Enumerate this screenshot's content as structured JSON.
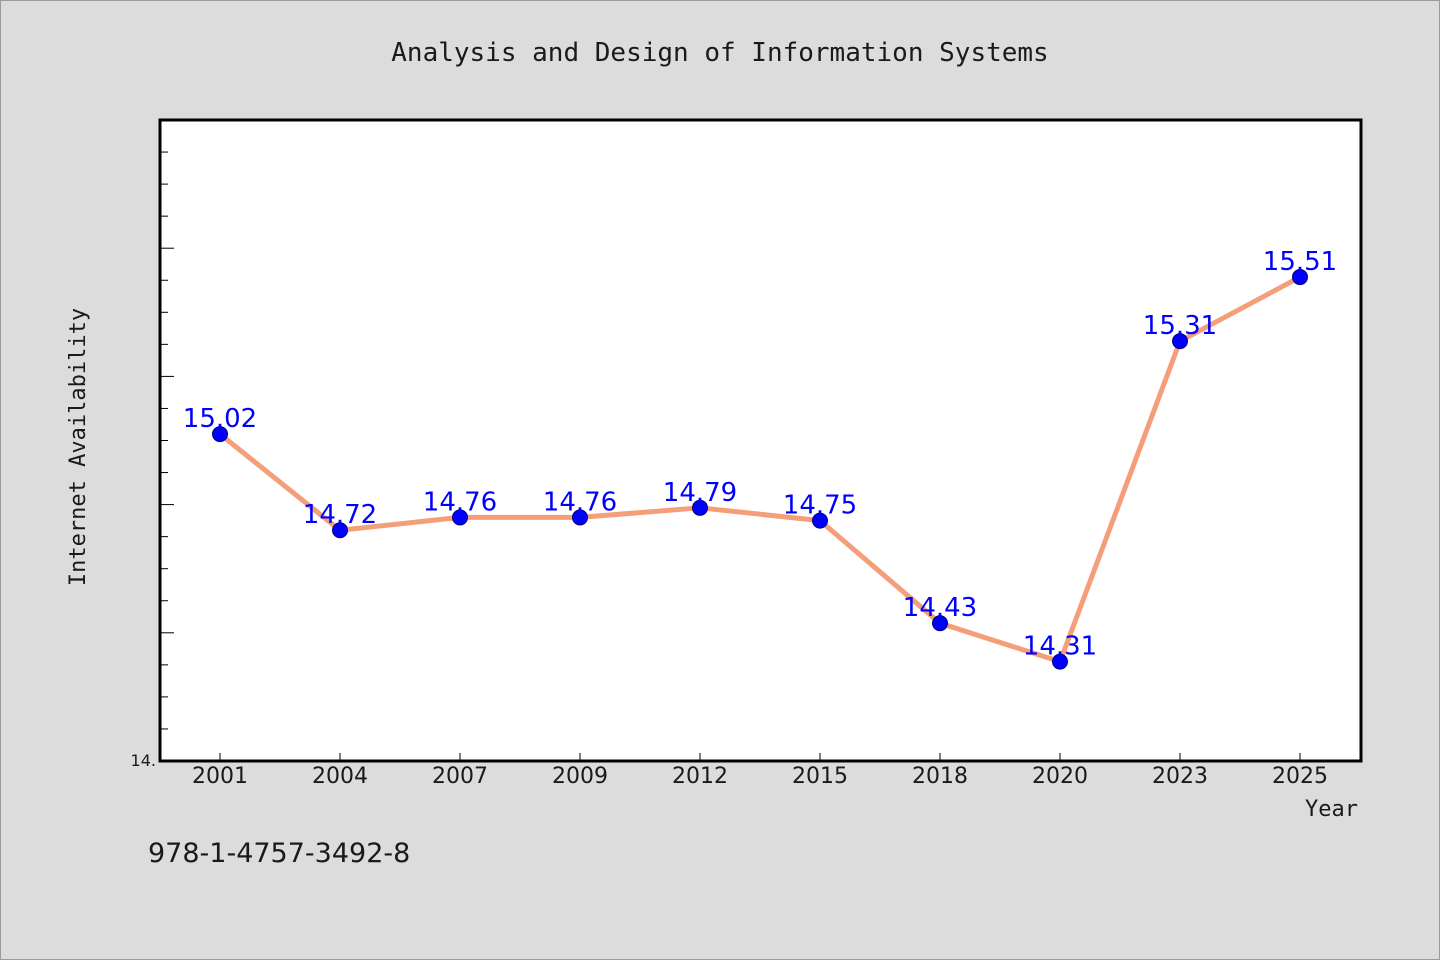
{
  "chart_data": {
    "type": "line",
    "title": "Analysis and Design of Information Systems",
    "xlabel": "Year",
    "ylabel": "Internet Availability",
    "categories": [
      "2001",
      "2004",
      "2007",
      "2009",
      "2012",
      "2015",
      "2018",
      "2020",
      "2023",
      "2025"
    ],
    "series": [
      {
        "values": [
          15.02,
          14.72,
          14.76,
          14.76,
          14.79,
          14.75,
          14.43,
          14.31,
          15.31,
          15.51
        ],
        "labels": [
          "15.02",
          "14.72",
          "14.76",
          "14.76",
          "14.79",
          "14.75",
          "14.43",
          "14.31",
          "15.31",
          "15.51"
        ],
        "line_color": "#f59e7a",
        "marker_color": "#0000ff",
        "label_color": "#0000ff"
      }
    ],
    "ylim": [
      14.0,
      16.0
    ],
    "ytick_label": "14.",
    "grid": false,
    "legend": "none"
  },
  "footer_text": "978-1-4757-3492-8",
  "colors": {
    "background": "#dcdcdc",
    "plot_background": "#ffffff",
    "line": "#f59e7a",
    "marker": "#0000ff"
  }
}
